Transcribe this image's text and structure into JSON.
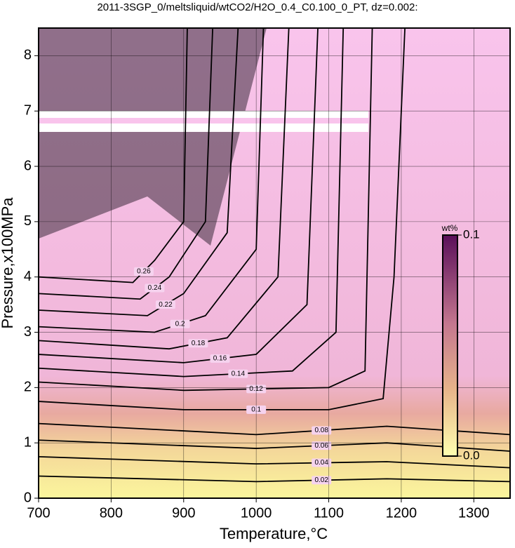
{
  "chart_data": {
    "type": "contour",
    "title": "2011-3SGP_0/meltsliquid/wtCO2/H2O_0.4_C0.100_0_PT, dz=0.002:",
    "x_label": "Temperature,°C",
    "y_label": "Pressure,x100MPa",
    "xlim": [
      700,
      1350
    ],
    "ylim": [
      0,
      8.5
    ],
    "xticks": [
      700,
      800,
      900,
      1000,
      1100,
      1200,
      1300
    ],
    "yticks": [
      0,
      1,
      2,
      3,
      4,
      5,
      6,
      7,
      8
    ],
    "grid": true,
    "contours": [
      {
        "level": 0.02,
        "x": [
          700,
          1000,
          1180,
          1350
        ],
        "y": [
          0.4,
          0.3,
          0.35,
          0.3
        ]
      },
      {
        "level": 0.04,
        "x": [
          700,
          1000,
          1180,
          1350
        ],
        "y": [
          0.75,
          0.62,
          0.66,
          0.55
        ]
      },
      {
        "level": 0.06,
        "x": [
          700,
          1000,
          1180,
          1350
        ],
        "y": [
          1.05,
          0.9,
          1.0,
          0.85
        ]
      },
      {
        "level": 0.08,
        "x": [
          700,
          1000,
          1180,
          1350
        ],
        "y": [
          1.35,
          1.15,
          1.3,
          1.15
        ]
      },
      {
        "level": 0.1,
        "x": [
          700,
          900,
          1100,
          1175,
          1190,
          1205
        ],
        "y": [
          1.75,
          1.6,
          1.6,
          1.8,
          4,
          8.5
        ]
      },
      {
        "level": 0.12,
        "x": [
          700,
          900,
          1100,
          1150,
          1160
        ],
        "y": [
          2.1,
          1.95,
          2,
          2.3,
          8.5
        ]
      },
      {
        "level": 0.14,
        "x": [
          700,
          900,
          1050,
          1110,
          1120
        ],
        "y": [
          2.35,
          2.2,
          2.3,
          3,
          8.5
        ]
      },
      {
        "level": 0.16,
        "x": [
          700,
          900,
          1000,
          1070,
          1085
        ],
        "y": [
          2.6,
          2.45,
          2.6,
          3.5,
          8.5
        ]
      },
      {
        "level": 0.18,
        "x": [
          700,
          880,
          960,
          1030,
          1045
        ],
        "y": [
          2.85,
          2.7,
          2.9,
          4,
          8.5
        ]
      },
      {
        "level": 0.2,
        "x": [
          700,
          860,
          930,
          1000,
          1010
        ],
        "y": [
          3.1,
          3,
          3.3,
          4.5,
          8.5
        ]
      },
      {
        "level": 0.22,
        "x": [
          700,
          850,
          900,
          960,
          975
        ],
        "y": [
          3.4,
          3.3,
          3.7,
          4.8,
          8.5
        ]
      },
      {
        "level": 0.24,
        "x": [
          700,
          840,
          880,
          930,
          940
        ],
        "y": [
          3.7,
          3.6,
          4,
          5,
          8.5
        ]
      },
      {
        "level": 0.26,
        "x": [
          700,
          830,
          860,
          900,
          905
        ],
        "y": [
          4,
          3.9,
          4.3,
          5,
          8.5
        ]
      }
    ],
    "colorbar_title": "wt%",
    "clim": [
      0,
      0.1
    ],
    "colorbar_ticks": [
      {
        "value": 0,
        "label": "0.0"
      },
      {
        "value": 0.1,
        "label": "0.1"
      }
    ]
  }
}
